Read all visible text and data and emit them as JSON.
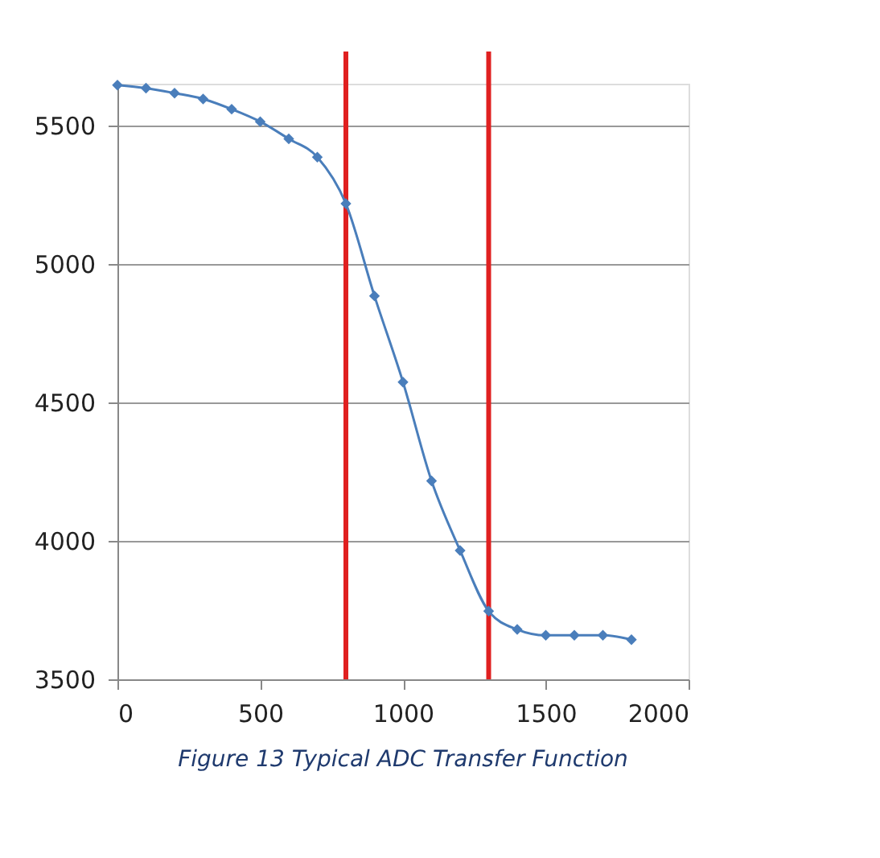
{
  "chart_data": {
    "type": "line",
    "x": [
      0,
      100,
      200,
      300,
      400,
      500,
      600,
      700,
      800,
      900,
      1000,
      1100,
      1200,
      1300,
      1400,
      1500,
      1600,
      1700,
      1800
    ],
    "series": [
      {
        "color": "#4a7ebb",
        "values": [
          5645,
          5634,
          5616,
          5595,
          5558,
          5513,
          5451,
          5385,
          5217,
          4884,
          4573,
          4216,
          3965,
          3746,
          3680,
          3659,
          3659,
          3659,
          3643
        ]
      }
    ],
    "xlim": [
      0,
      2000
    ],
    "xticks": [
      0,
      500,
      1000,
      1500,
      2000
    ],
    "ylim": [
      3500,
      5650
    ],
    "yticks": [
      3500,
      4000,
      4500,
      5000,
      5500
    ],
    "grid": "y",
    "marker": "diamond",
    "line_style": "solid",
    "ref_lines": [
      {
        "axis": "x",
        "value": 800,
        "color": "#e02020"
      },
      {
        "axis": "x",
        "value": 1300,
        "color": "#e02020"
      }
    ],
    "annotations": [
      "Figure 13  Typical ADC Transfer Function"
    ]
  }
}
